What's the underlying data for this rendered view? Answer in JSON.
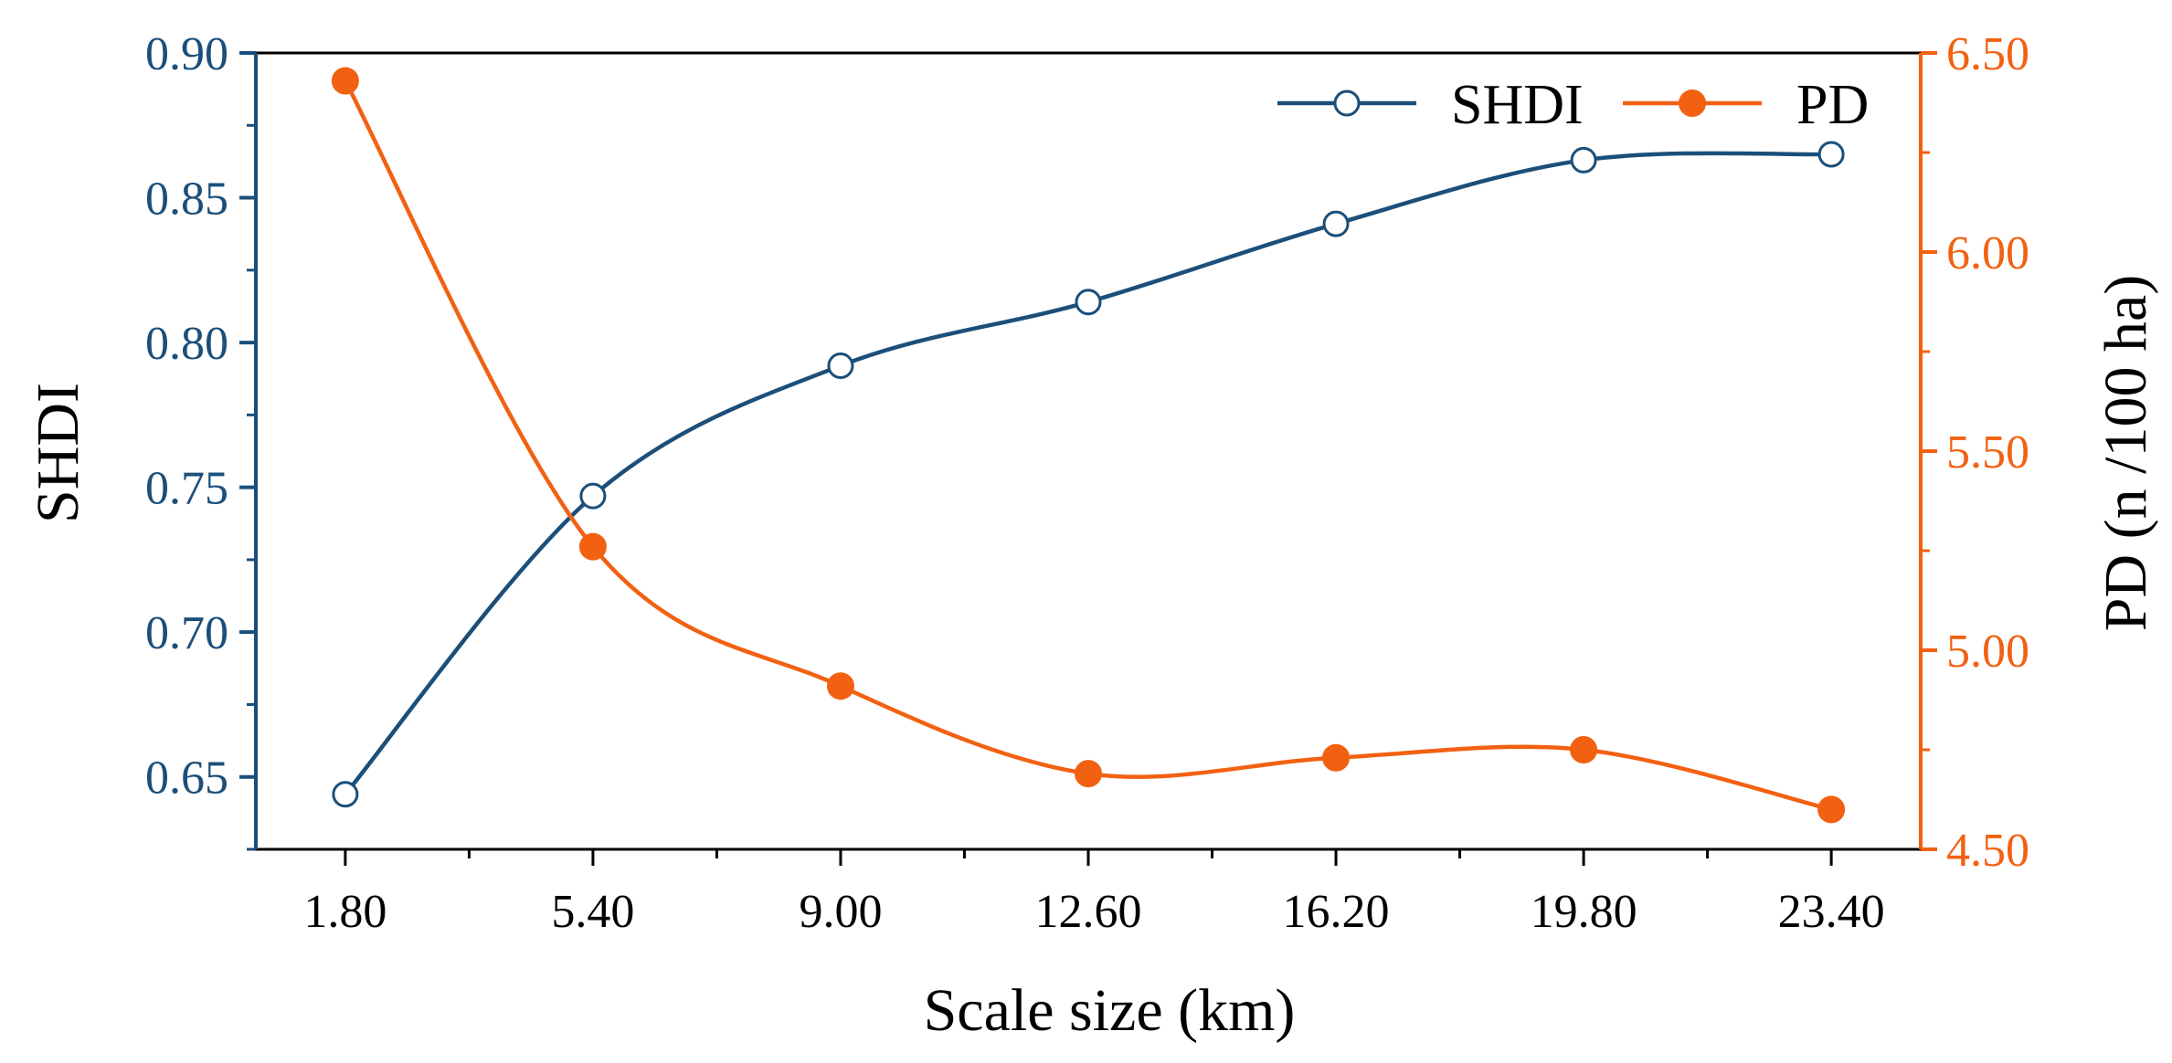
{
  "colors": {
    "shdi": "#1b4f7a",
    "pd": "#f26112",
    "axis_left": "#1b4f7a",
    "axis_right": "#f26112",
    "frame": "#000000"
  },
  "chart_data": {
    "type": "line",
    "title": "",
    "xlabel": "Scale size (km)",
    "ylabel": "SHDI",
    "y2label": "PD (n /100 ha)",
    "x": [
      1.8,
      5.4,
      9.0,
      12.6,
      16.2,
      19.8,
      23.4
    ],
    "x_tick_labels": [
      "1.80",
      "5.40",
      "9.00",
      "12.60",
      "16.20",
      "19.80",
      "23.40"
    ],
    "xlim": [
      0.5,
      24.7
    ],
    "ylim": [
      0.625,
      0.9
    ],
    "y_ticks": [
      0.65,
      0.7,
      0.75,
      0.8,
      0.85,
      0.9
    ],
    "y_tick_labels": [
      "0.65",
      "0.70",
      "0.75",
      "0.80",
      "0.85",
      "0.90"
    ],
    "y2lim": [
      4.5,
      6.5
    ],
    "y2_ticks": [
      4.5,
      5.0,
      5.5,
      6.0,
      6.5
    ],
    "y2_tick_labels": [
      "4.50",
      "5.00",
      "5.50",
      "6.00",
      "6.50"
    ],
    "legend_position": "top-right",
    "grid": false,
    "series": [
      {
        "name": "SHDI",
        "axis": "left",
        "marker": "open-circle",
        "smooth": true,
        "values": [
          0.644,
          0.747,
          0.792,
          0.814,
          0.841,
          0.863,
          0.865
        ]
      },
      {
        "name": "PD",
        "axis": "right",
        "marker": "filled-circle",
        "smooth": true,
        "values": [
          6.43,
          5.26,
          4.91,
          4.69,
          4.73,
          4.75,
          4.6
        ]
      }
    ]
  }
}
